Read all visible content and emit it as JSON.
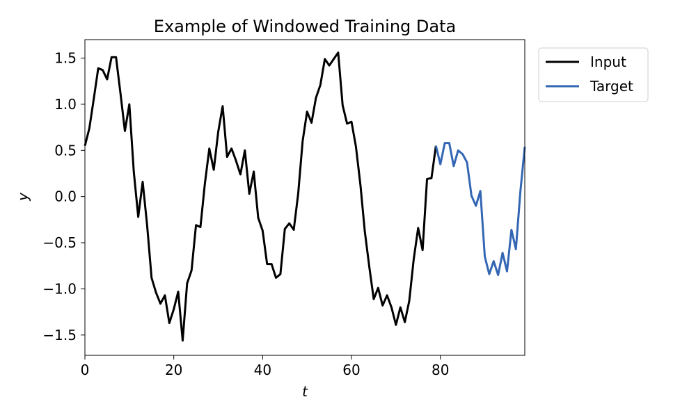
{
  "chart_data": {
    "type": "line",
    "title": "Example of Windowed Training Data",
    "xlabel": "t",
    "ylabel": "y",
    "xlim": [
      0,
      99
    ],
    "ylim": [
      -1.72,
      1.7
    ],
    "xticks": [
      0,
      20,
      40,
      60,
      80
    ],
    "yticks": [
      1.5,
      1.0,
      0.5,
      0.0,
      -0.5,
      -1.0,
      -1.5
    ],
    "xtick_labels": [
      "0",
      "20",
      "40",
      "60",
      "80"
    ],
    "ytick_labels": [
      "1.5",
      "1.0",
      "0.5",
      "0.0",
      "−0.5",
      "−1.0",
      "−1.5"
    ],
    "grid": false,
    "legend_position": "outside upper-right",
    "series": [
      {
        "name": "Input",
        "color": "#000000",
        "x": [
          0,
          1,
          2,
          3,
          4,
          5,
          6,
          7,
          8,
          9,
          10,
          11,
          12,
          13,
          14,
          15,
          16,
          17,
          18,
          19,
          20,
          21,
          22,
          23,
          24,
          25,
          26,
          27,
          28,
          29,
          30,
          31,
          32,
          33,
          34,
          35,
          36,
          37,
          38,
          39,
          40,
          41,
          42,
          43,
          44,
          45,
          46,
          47,
          48,
          49,
          50,
          51,
          52,
          53,
          54,
          55,
          56,
          57,
          58,
          59,
          60,
          61,
          62,
          63,
          64,
          65,
          66,
          67,
          68,
          69,
          70,
          71,
          72,
          73,
          74,
          75,
          76,
          77,
          78,
          79
        ],
        "y": [
          0.55,
          0.74,
          1.06,
          1.39,
          1.37,
          1.27,
          1.51,
          1.51,
          1.12,
          0.71,
          1.0,
          0.27,
          -0.22,
          0.16,
          -0.31,
          -0.88,
          -1.04,
          -1.16,
          -1.07,
          -1.37,
          -1.22,
          -1.03,
          -1.56,
          -0.94,
          -0.8,
          -0.31,
          -0.33,
          0.14,
          0.52,
          0.29,
          0.7,
          0.98,
          0.43,
          0.52,
          0.39,
          0.24,
          0.5,
          0.03,
          0.27,
          -0.23,
          -0.37,
          -0.73,
          -0.73,
          -0.88,
          -0.84,
          -0.35,
          -0.29,
          -0.36,
          0.03,
          0.6,
          0.92,
          0.8,
          1.07,
          1.21,
          1.49,
          1.42,
          1.49,
          1.56,
          0.99,
          0.79,
          0.81,
          0.54,
          0.13,
          -0.38,
          -0.76,
          -1.11,
          -0.99,
          -1.18,
          -1.07,
          -1.2,
          -1.39,
          -1.2,
          -1.36,
          -1.13,
          -0.68,
          -0.34,
          -0.58,
          0.19,
          0.2,
          0.55
        ]
      },
      {
        "name": "Target",
        "color": "#3366b3",
        "x": [
          79,
          80,
          81,
          82,
          83,
          84,
          85,
          86,
          87,
          88,
          89,
          90,
          91,
          92,
          93,
          94,
          95,
          96,
          97,
          98,
          99
        ],
        "y": [
          0.55,
          0.35,
          0.58,
          0.58,
          0.33,
          0.5,
          0.46,
          0.37,
          0.01,
          -0.1,
          0.06,
          -0.65,
          -0.84,
          -0.7,
          -0.85,
          -0.61,
          -0.81,
          -0.36,
          -0.57,
          0.05,
          0.54
        ]
      }
    ]
  }
}
